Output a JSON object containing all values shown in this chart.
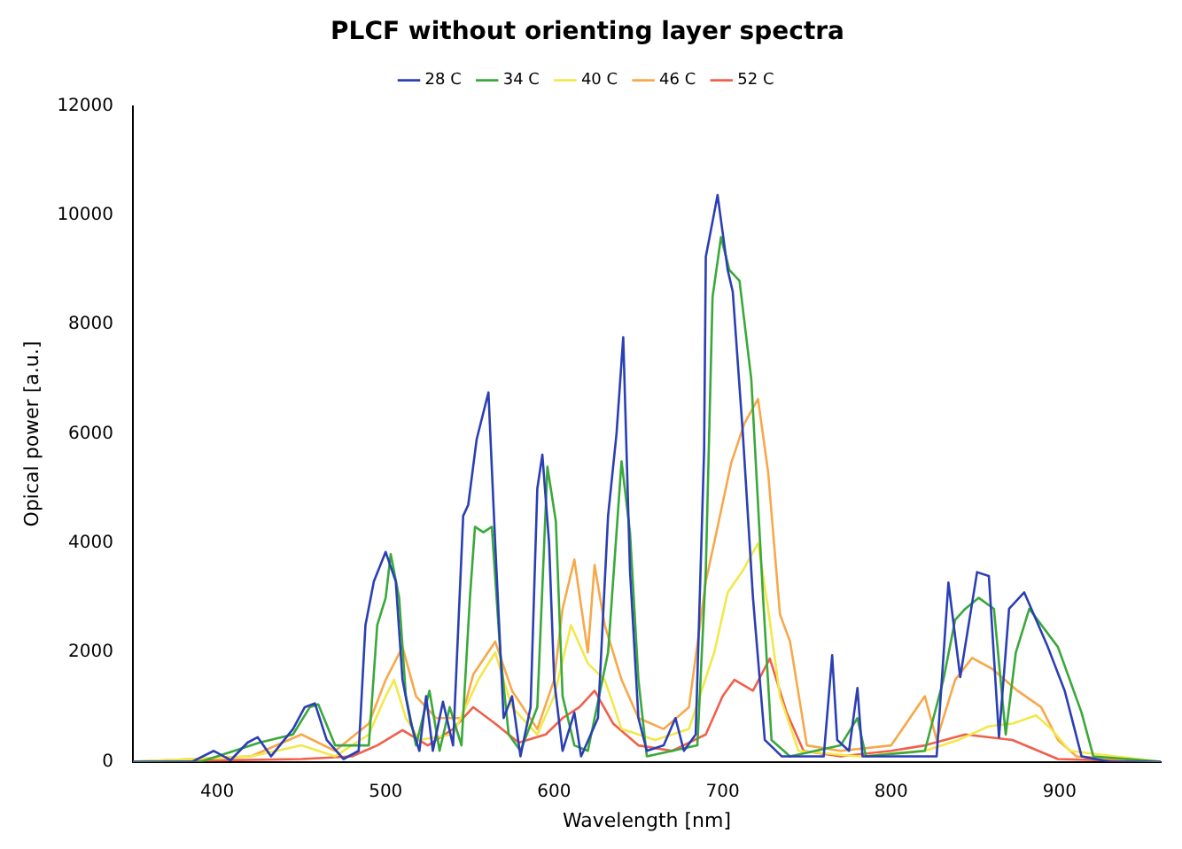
{
  "chart_data": {
    "type": "line",
    "title": "PLCF without orienting layer spectra",
    "xlabel": "Wavelength [nm]",
    "ylabel": "Opical power [a.u.]",
    "xlim": [
      350,
      960
    ],
    "xticks": [
      400,
      500,
      600,
      700,
      800,
      900
    ],
    "ylim": [
      0,
      12000
    ],
    "yticks": [
      0,
      2000,
      4000,
      6000,
      8000,
      10000,
      12000
    ],
    "grid": false,
    "legend": "top",
    "marker": "none",
    "line_style": "solid",
    "series": [
      {
        "name": "28 C",
        "color": "#2b3fb5",
        "x": [
          350,
          385,
          398,
          408,
          418,
          424,
          432,
          445,
          452,
          458,
          465,
          475,
          484,
          488,
          493,
          500,
          506,
          510,
          515,
          520,
          524,
          528,
          534,
          540,
          546,
          549,
          554,
          561,
          565,
          570,
          575,
          580,
          586,
          590,
          593,
          597,
          600,
          605,
          612,
          616,
          626,
          632,
          637,
          641,
          645,
          650,
          655,
          665,
          672,
          677,
          684,
          689,
          690,
          697,
          703,
          706,
          712,
          718,
          725,
          735,
          760,
          765,
          768,
          775,
          780,
          783,
          800,
          827,
          834,
          841,
          851,
          858,
          864,
          870,
          879,
          893,
          903,
          913,
          930,
          960
        ],
        "values": [
          0,
          0,
          200,
          30,
          350,
          450,
          100,
          600,
          1000,
          1070,
          400,
          50,
          200,
          2500,
          3300,
          3840,
          3300,
          1500,
          700,
          200,
          1200,
          200,
          1100,
          300,
          4500,
          4700,
          5900,
          6760,
          4000,
          800,
          1200,
          100,
          1000,
          5000,
          5620,
          4000,
          1500,
          200,
          900,
          100,
          800,
          4500,
          6000,
          7770,
          3500,
          800,
          200,
          300,
          800,
          200,
          500,
          5700,
          9240,
          10370,
          9000,
          8600,
          6000,
          3000,
          400,
          100,
          100,
          1950,
          400,
          200,
          1350,
          100,
          100,
          100,
          3280,
          1550,
          3470,
          3400,
          450,
          2800,
          3100,
          2100,
          1300,
          100,
          0,
          0
        ]
      },
      {
        "name": "34 C",
        "color": "#3aa83a",
        "x": [
          350,
          390,
          400,
          425,
          445,
          455,
          460,
          470,
          490,
          495,
          500,
          503,
          508,
          512,
          518,
          526,
          532,
          538,
          545,
          550,
          553,
          558,
          563,
          568,
          573,
          580,
          590,
          596,
          601,
          605,
          612,
          620,
          632,
          640,
          645,
          650,
          655,
          670,
          685,
          690,
          694,
          699,
          704,
          710,
          717,
          724,
          729,
          740,
          770,
          780,
          785,
          820,
          831,
          838,
          844,
          852,
          861,
          868,
          874,
          882,
          899,
          913,
          920,
          960
        ],
        "values": [
          0,
          0,
          100,
          350,
          500,
          1000,
          1050,
          300,
          300,
          2500,
          3000,
          3800,
          3000,
          1200,
          300,
          1300,
          200,
          1000,
          300,
          3000,
          4300,
          4200,
          4300,
          2000,
          500,
          200,
          1000,
          5400,
          4400,
          1200,
          300,
          200,
          2000,
          5500,
          4200,
          1500,
          100,
          200,
          300,
          3500,
          8500,
          9600,
          9000,
          8800,
          7000,
          3000,
          400,
          100,
          300,
          800,
          100,
          200,
          1500,
          2600,
          2800,
          3000,
          2800,
          500,
          2000,
          2800,
          2100,
          900,
          100,
          0
        ]
      },
      {
        "name": "40 C",
        "color": "#f2e84a",
        "x": [
          350,
          420,
          450,
          470,
          490,
          500,
          505,
          512,
          520,
          540,
          555,
          565,
          575,
          590,
          600,
          610,
          620,
          630,
          640,
          660,
          680,
          695,
          703,
          712,
          721,
          727,
          734,
          745,
          780,
          820,
          840,
          858,
          872,
          886,
          895,
          906,
          960
        ],
        "values": [
          0,
          100,
          300,
          100,
          500,
          1200,
          1500,
          800,
          400,
          500,
          1500,
          2000,
          1000,
          500,
          1200,
          2500,
          1800,
          1500,
          600,
          400,
          600,
          2000,
          3100,
          3500,
          4000,
          2800,
          1200,
          200,
          100,
          200,
          400,
          650,
          700,
          850,
          600,
          200,
          0
        ]
      },
      {
        "name": "46 C",
        "color": "#f7a84a",
        "x": [
          350,
          420,
          450,
          470,
          490,
          500,
          510,
          518,
          530,
          545,
          552,
          565,
          575,
          590,
          600,
          605,
          612,
          620,
          624,
          630,
          640,
          650,
          665,
          680,
          690,
          697,
          705,
          713,
          721,
          727,
          734,
          740,
          750,
          770,
          800,
          820,
          827,
          838,
          848,
          860,
          875,
          889,
          899,
          910,
          960
        ],
        "values": [
          0,
          100,
          500,
          200,
          700,
          1500,
          2100,
          1200,
          800,
          800,
          1600,
          2200,
          1300,
          600,
          1500,
          2800,
          3700,
          2000,
          3600,
          2500,
          1500,
          800,
          600,
          1000,
          3300,
          4300,
          5460,
          6200,
          6640,
          5300,
          2700,
          2200,
          300,
          200,
          300,
          1200,
          400,
          1500,
          1900,
          1700,
          1300,
          1000,
          400,
          100,
          0
        ]
      },
      {
        "name": "52 C",
        "color": "#f0604a",
        "x": [
          350,
          450,
          480,
          495,
          510,
          525,
          540,
          552,
          565,
          579,
          595,
          605,
          615,
          624,
          635,
          650,
          670,
          690,
          700,
          707,
          718,
          728,
          738,
          748,
          770,
          800,
          820,
          844,
          872,
          899,
          960
        ],
        "values": [
          0,
          50,
          100,
          300,
          580,
          300,
          600,
          1000,
          700,
          350,
          500,
          800,
          1000,
          1300,
          700,
          300,
          200,
          500,
          1200,
          1500,
          1300,
          1890,
          900,
          200,
          100,
          200,
          300,
          500,
          400,
          50,
          0
        ]
      }
    ]
  }
}
